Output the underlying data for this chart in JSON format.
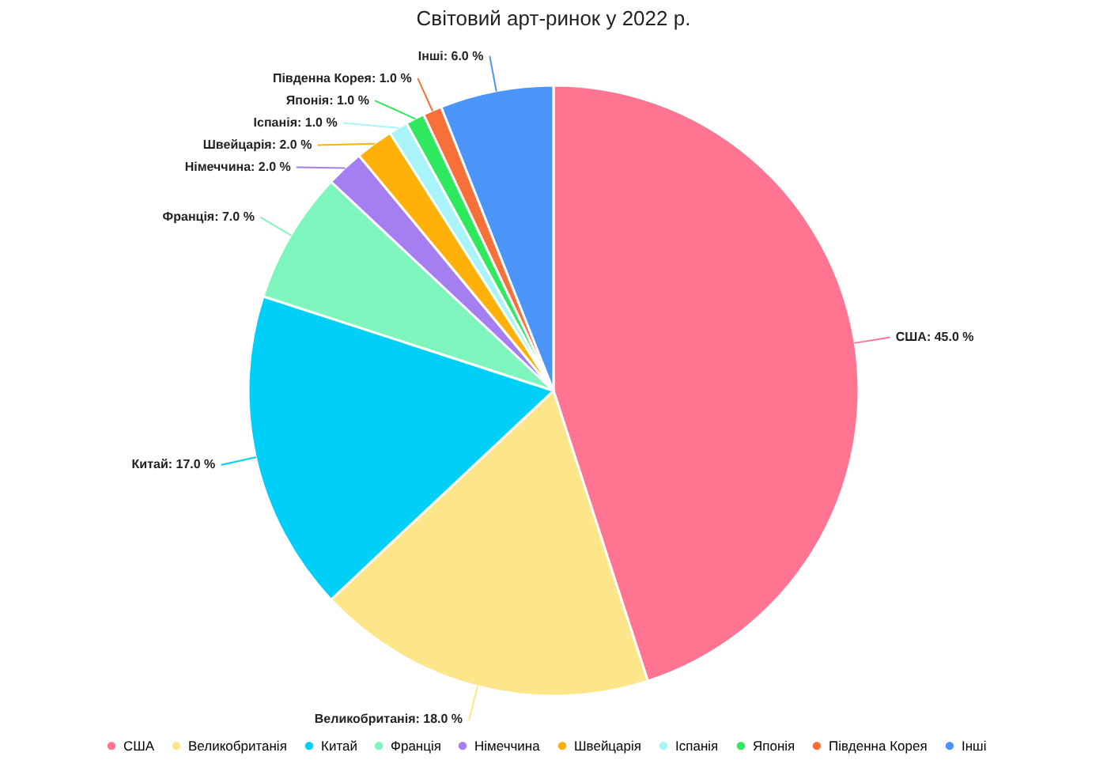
{
  "chart_data": {
    "type": "pie",
    "title": "Світовий арт-ринок у 2022 р.",
    "categories": [
      "США",
      "Великобританія",
      "Китай",
      "Франція",
      "Німеччина",
      "Швейцарія",
      "Іспанія",
      "Японія",
      "Південна Корея",
      "Інші"
    ],
    "values": [
      45,
      18,
      17,
      7,
      2,
      2,
      1,
      1,
      1,
      6
    ],
    "value_labels": [
      "США: 45.0 %",
      "Великобританія: 18.0 %",
      "Китай: 17.0 %",
      "Франція: 7.0 %",
      "Німеччина: 2.0 %",
      "Швейцарія: 2.0 %",
      "Іспанія: 1.0 %",
      "Японія: 1.0 %",
      "Південна Корея: 1.0 %",
      "Інші: 6.0 %"
    ],
    "colors": [
      "#ff7591",
      "#fde68a",
      "#00cff7",
      "#7ff5be",
      "#a57ff2",
      "#ffb10a",
      "#a8f4f8",
      "#2ee85e",
      "#f7703a",
      "#4a95f7"
    ],
    "legend": "bottom"
  }
}
